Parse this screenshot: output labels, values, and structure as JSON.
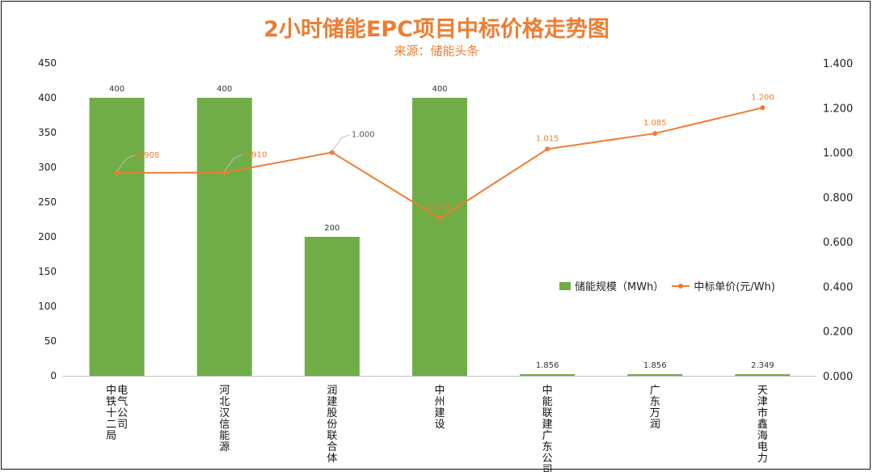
{
  "title": "2小时储能EPC项目中标价格走势图",
  "subtitle": "来源：储能头条",
  "colors": {
    "bar": "#70AD47",
    "line": "#ED7D31",
    "title": "#ED7D31"
  },
  "chart_data": {
    "type": "bar+line",
    "categories": [
      "中铁十二局电气公司",
      "河北汉信能源",
      "润建股份联合体",
      "中州建设",
      "中能联建广东公司",
      "广东万润",
      "天津市鑫海电力"
    ],
    "category_lines": [
      [
        "中铁十二局",
        "电气公司"
      ],
      [
        "河北汉信能源"
      ],
      [
        "润建股份联合体"
      ],
      [
        "中州建设"
      ],
      [
        "中能联建广东公司"
      ],
      [
        "广东万润"
      ],
      [
        "天津市鑫海电力"
      ]
    ],
    "series": [
      {
        "name": "储能规模（MWh）",
        "type": "bar",
        "axis": "left",
        "values": [
          400,
          400,
          200,
          400,
          1.856,
          1.856,
          2.349
        ],
        "labels": [
          "400",
          "400",
          "200",
          "400",
          "1.856",
          "1.856",
          "2.349"
        ]
      },
      {
        "name": "中标单价(元/Wh)",
        "type": "line",
        "axis": "right",
        "values": [
          0.908,
          0.91,
          1.0,
          0.705,
          1.015,
          1.085,
          1.2
        ],
        "labels": [
          "0.908",
          "0.910",
          "1.000",
          "0.705",
          "1.015",
          "1.085",
          "1.200"
        ]
      }
    ],
    "y_left": {
      "min": 0,
      "max": 450,
      "ticks": [
        "0",
        "50",
        "100",
        "150",
        "200",
        "250",
        "300",
        "350",
        "400",
        "450"
      ]
    },
    "y_right": {
      "min": 0,
      "max": 1.4,
      "ticks": [
        "0.000",
        "0.200",
        "0.400",
        "0.600",
        "0.800",
        "1.000",
        "1.200",
        "1.400"
      ]
    },
    "grid": false,
    "legend_position": "right-middle"
  }
}
